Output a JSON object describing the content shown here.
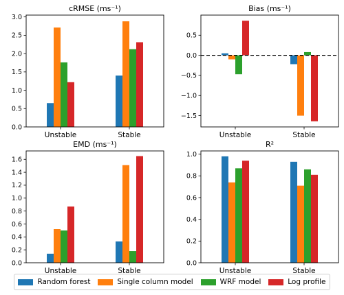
{
  "chart_data": [
    {
      "type": "bar",
      "title": "cRMSE (ms⁻¹)",
      "categories": [
        "Unstable",
        "Stable"
      ],
      "ylim": [
        0,
        3.05
      ],
      "yticks": [
        0.0,
        0.5,
        1.0,
        1.5,
        2.0,
        2.5,
        3.0
      ],
      "tick_labels": [
        "0.0",
        "0.5",
        "1.0",
        "1.5",
        "2.0",
        "2.5",
        "3.0"
      ],
      "series": [
        {
          "name": "Random forest",
          "values": [
            0.65,
            1.4
          ]
        },
        {
          "name": "Single column model",
          "values": [
            2.71,
            2.88
          ]
        },
        {
          "name": "WRF model",
          "values": [
            1.76,
            2.12
          ]
        },
        {
          "name": "Log profile",
          "values": [
            1.22,
            2.31
          ]
        }
      ]
    },
    {
      "type": "bar",
      "title": "Bias (ms⁻¹)",
      "categories": [
        "Unstable",
        "Stable"
      ],
      "ylim": [
        -1.78,
        1.0
      ],
      "yticks": [
        -1.5,
        -1.0,
        -0.5,
        0.0,
        0.5
      ],
      "tick_labels": [
        "−1.5",
        "−1.0",
        "−0.5",
        "0.0",
        "0.5"
      ],
      "zero_line": "dashed",
      "series": [
        {
          "name": "Random forest",
          "values": [
            0.05,
            -0.22
          ]
        },
        {
          "name": "Single column model",
          "values": [
            -0.1,
            -1.5
          ]
        },
        {
          "name": "WRF model",
          "values": [
            -0.47,
            0.08
          ]
        },
        {
          "name": "Log profile",
          "values": [
            0.86,
            -1.64
          ]
        }
      ]
    },
    {
      "type": "bar",
      "title": "EMD (ms⁻¹)",
      "categories": [
        "Unstable",
        "Stable"
      ],
      "ylim": [
        0,
        1.73
      ],
      "yticks": [
        0.0,
        0.2,
        0.4,
        0.6,
        0.8,
        1.0,
        1.2,
        1.4,
        1.6
      ],
      "tick_labels": [
        "0.0",
        "0.2",
        "0.4",
        "0.6",
        "0.8",
        "1.0",
        "1.2",
        "1.4",
        "1.6"
      ],
      "series": [
        {
          "name": "Random forest",
          "values": [
            0.14,
            0.33
          ]
        },
        {
          "name": "Single column model",
          "values": [
            0.52,
            1.51
          ]
        },
        {
          "name": "WRF model",
          "values": [
            0.5,
            0.18
          ]
        },
        {
          "name": "Log profile",
          "values": [
            0.87,
            1.65
          ]
        }
      ]
    },
    {
      "type": "bar",
      "title": "R²",
      "categories": [
        "Unstable",
        "Stable"
      ],
      "ylim": [
        0,
        1.03
      ],
      "yticks": [
        0.0,
        0.2,
        0.4,
        0.6,
        0.8,
        1.0
      ],
      "tick_labels": [
        "0.0",
        "0.2",
        "0.4",
        "0.6",
        "0.8",
        "1.0"
      ],
      "series": [
        {
          "name": "Random forest",
          "values": [
            0.98,
            0.93
          ]
        },
        {
          "name": "Single column model",
          "values": [
            0.74,
            0.71
          ]
        },
        {
          "name": "WRF model",
          "values": [
            0.87,
            0.86
          ]
        },
        {
          "name": "Log profile",
          "values": [
            0.94,
            0.81
          ]
        }
      ]
    }
  ],
  "legend": {
    "placement": "bottom",
    "items": [
      {
        "label": "Random forest",
        "color": "#1f77b4"
      },
      {
        "label": "Single column model",
        "color": "#ff7f0e"
      },
      {
        "label": "WRF model",
        "color": "#2ca02c"
      },
      {
        "label": "Log profile",
        "color": "#d62728"
      }
    ]
  }
}
